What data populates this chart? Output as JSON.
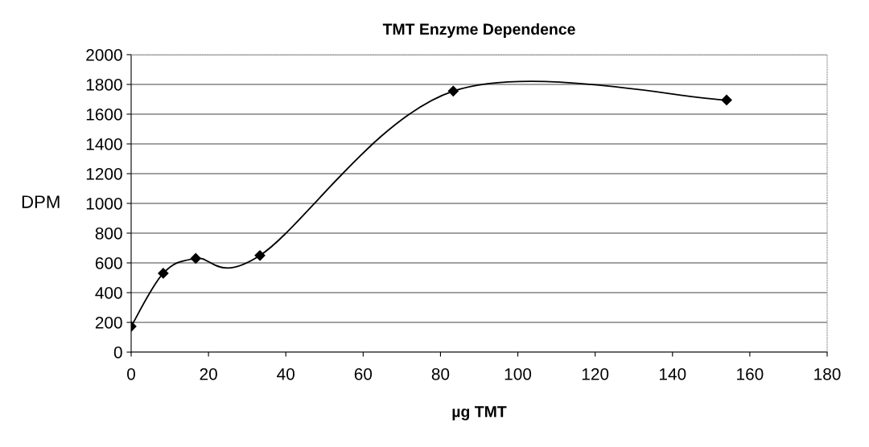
{
  "chart_data": {
    "type": "line",
    "title": "TMT Enzyme Dependence",
    "xlabel": "µg TMT",
    "ylabel": "DPM",
    "x": [
      0,
      8.3,
      16.7,
      33.3,
      83.3,
      154
    ],
    "series": [
      {
        "color": "#000000",
        "values": [
          173,
          530,
          630,
          650,
          1755,
          1695
        ]
      }
    ],
    "xlim": [
      0,
      180
    ],
    "xticks": [
      0,
      20,
      40,
      60,
      80,
      100,
      120,
      140,
      160,
      180
    ],
    "ylim": [
      0,
      2000
    ],
    "yticks": [
      0,
      200,
      400,
      600,
      800,
      1000,
      1200,
      1400,
      1600,
      1800,
      2000
    ],
    "grid": "y",
    "marker": "diamond",
    "line_style": "solid",
    "legend": false
  }
}
